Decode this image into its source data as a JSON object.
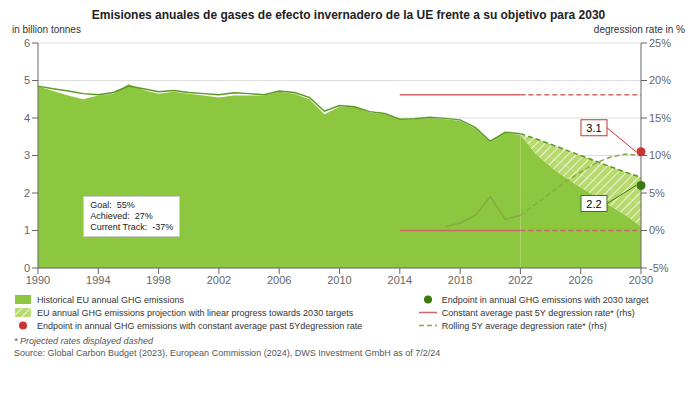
{
  "chart_data": {
    "type": "line",
    "title": "Emisiones anuales de gases de efecto invernadero de la UE frente a su objetivo para 2030",
    "y_label": "in billion tonnes",
    "y2_label": "degression rate in %",
    "annotations": [
      "Goal:  55%\nAchieved:  27%\nCurrent Track:  -37%"
    ],
    "footnotes": [
      "* Projected rates displayed dashed",
      "Source: Global Carbon Budget (2023), European Commission (2024), DWS Investment GmbH as of 7/2/24"
    ],
    "xlim": [
      1990,
      2030
    ],
    "xticks": [
      1990,
      1994,
      1998,
      2002,
      2006,
      2010,
      2014,
      2018,
      2022,
      2026,
      2030
    ],
    "ylim": [
      0,
      6
    ],
    "yticks": [
      0,
      1,
      2,
      3,
      4,
      5,
      6
    ],
    "y2lim": [
      -5,
      25
    ],
    "y2ticks": [
      {
        "value": -5,
        "label": "-5%"
      },
      {
        "value": 0,
        "label": "0%"
      },
      {
        "value": 5,
        "label": "5%"
      },
      {
        "value": 10,
        "label": "10%"
      },
      {
        "value": 15,
        "label": "15%"
      },
      {
        "value": 20,
        "label": "20%"
      },
      {
        "value": 25,
        "label": "25%"
      }
    ],
    "grid": "y",
    "legend": "bottom",
    "series": [
      {
        "name": "Historical EU annual GHG emissions",
        "type": "area",
        "color": "#8dc63f",
        "x": [
          1990,
          1991,
          1992,
          1993,
          1994,
          1995,
          1996,
          1997,
          1998,
          1999,
          2000,
          2001,
          2002,
          2003,
          2004,
          2005,
          2006,
          2007,
          2008,
          2009,
          2010,
          2011,
          2012,
          2013,
          2014,
          2015,
          2016,
          2017,
          2018,
          2019,
          2020,
          2021,
          2022
        ],
        "values": [
          4.85,
          4.72,
          4.6,
          4.5,
          4.6,
          4.65,
          4.9,
          4.75,
          4.65,
          4.7,
          4.65,
          4.6,
          4.55,
          4.6,
          4.6,
          4.6,
          4.7,
          4.65,
          4.5,
          4.1,
          4.3,
          4.3,
          4.15,
          4.1,
          3.95,
          3.97,
          4.0,
          3.97,
          3.93,
          3.72,
          3.35,
          3.6,
          3.55
        ]
      },
      {
        "name": "EU annual GHG emissions projection with linear progress towards 2030 targets",
        "type": "band",
        "color": "#b8d96e",
        "x": [
          2022,
          2023,
          2024,
          2025,
          2026,
          2027,
          2028,
          2029,
          2030
        ],
        "values": [
          3.55,
          3.45,
          3.3,
          3.15,
          3.0,
          2.85,
          2.7,
          2.55,
          2.42
        ],
        "base": [
          3.55,
          3.2,
          2.95,
          2.72,
          2.5,
          2.3,
          2.1,
          1.9,
          1.7
        ]
      },
      {
        "type": "band",
        "color": "#b8d96e",
        "x": [
          2022,
          2023,
          2024,
          2025,
          2026,
          2027,
          2028,
          2029,
          2030
        ],
        "values": [
          3.55,
          3.2,
          2.95,
          2.72,
          2.5,
          2.3,
          2.1,
          1.9,
          1.7
        ],
        "base": [
          3.55,
          3.05,
          2.7,
          2.4,
          2.15,
          1.9,
          1.65,
          1.4,
          1.1
        ]
      },
      {
        "type": "area",
        "color": "#8dc63f",
        "x": [
          2022,
          2023,
          2024,
          2025,
          2026,
          2027,
          2028,
          2029,
          2030
        ],
        "values": [
          3.55,
          3.05,
          2.7,
          2.4,
          2.15,
          1.9,
          1.65,
          1.4,
          1.1
        ]
      },
      {
        "color": "#5a9a20",
        "line_style": "solid",
        "x": [
          1990,
          1991,
          1992,
          1993,
          1994,
          1995,
          1996,
          1997,
          1998,
          1999,
          2000,
          2001,
          2002,
          2003,
          2004,
          2005,
          2006,
          2007,
          2008,
          2009,
          2010,
          2011,
          2012,
          2013,
          2014,
          2015,
          2016,
          2017,
          2018,
          2019,
          2020,
          2021,
          2022
        ],
        "values": [
          4.85,
          4.78,
          4.72,
          4.65,
          4.62,
          4.68,
          4.85,
          4.78,
          4.7,
          4.73,
          4.68,
          4.65,
          4.62,
          4.67,
          4.65,
          4.62,
          4.72,
          4.68,
          4.55,
          4.18,
          4.33,
          4.3,
          4.17,
          4.12,
          3.97,
          3.98,
          4.02,
          3.99,
          3.95,
          3.75,
          3.38,
          3.62,
          3.58
        ]
      },
      {
        "color": "#5a9a20",
        "line_style": "dashed",
        "x": [
          2022,
          2023,
          2024,
          2025,
          2026,
          2027,
          2028,
          2029,
          2030
        ],
        "values": [
          3.58,
          3.45,
          3.3,
          3.15,
          3.0,
          2.85,
          2.7,
          2.55,
          2.42
        ]
      },
      {
        "color": "#cc6666",
        "line_style": "solid",
        "x": [
          2014,
          2015,
          2016,
          2017,
          2018,
          2019,
          2020,
          2021,
          2022
        ],
        "values": [
          4.62,
          4.62,
          4.62,
          4.62,
          4.62,
          4.62,
          4.62,
          4.62,
          4.62
        ]
      },
      {
        "color": "#cc6666",
        "line_style": "dashed",
        "x": [
          2022,
          2023,
          2024,
          2025,
          2026,
          2027,
          2028,
          2029,
          2030
        ],
        "values": [
          4.62,
          4.62,
          4.62,
          4.62,
          4.62,
          4.62,
          4.62,
          4.62,
          4.62
        ]
      },
      {
        "name": "Endpoint in annual GHG emissions with constant average past 5Ydegression rate",
        "type": "scatter",
        "color": "#cc3333",
        "marker": "circle",
        "data_labels": true,
        "x": [
          2030
        ],
        "values": [
          3.1
        ]
      },
      {
        "name": "Endpoint in annual GHG emissions with 2030 target",
        "type": "scatter",
        "color": "#3a7a10",
        "marker": "circle",
        "data_labels": true,
        "x": [
          2030
        ],
        "values": [
          2.2
        ]
      },
      {
        "name": "Constant average past 5Y degression rate* (rhs)",
        "color": "#cc6666",
        "line_style": "solid",
        "axis": "y2",
        "x": [
          2014,
          2015,
          2016,
          2017,
          2018,
          2019,
          2020,
          2021,
          2022
        ],
        "values": [
          0.0,
          0.0,
          0.0,
          0.0,
          0.0,
          0.0,
          0.0,
          0.0,
          0.0
        ]
      },
      {
        "color": "#cc6666",
        "line_style": "dashed",
        "axis": "y2",
        "x": [
          2022,
          2023,
          2024,
          2025,
          2026,
          2027,
          2028,
          2029,
          2030
        ],
        "values": [
          0.0,
          0.0,
          0.0,
          0.0,
          0.0,
          0.0,
          0.0,
          0.0,
          0.0
        ]
      },
      {
        "color": "#88aa44",
        "line_style": "solid",
        "axis": "y2",
        "x": [
          2017,
          2018,
          2019,
          2020,
          2021,
          2022
        ],
        "values": [
          0.5,
          1.0,
          2.0,
          4.5,
          1.5,
          2.0
        ]
      },
      {
        "name": "Rolling 5Y average degression rate* (rhs)",
        "color": "#88aa44",
        "line_style": "dashed",
        "axis": "y2",
        "x": [
          2022,
          2023,
          2024,
          2025,
          2026,
          2027,
          2028,
          2029,
          2030
        ],
        "values": [
          2.0,
          3.5,
          5.0,
          6.5,
          7.8,
          9.0,
          9.8,
          10.2,
          10.0
        ]
      }
    ]
  }
}
